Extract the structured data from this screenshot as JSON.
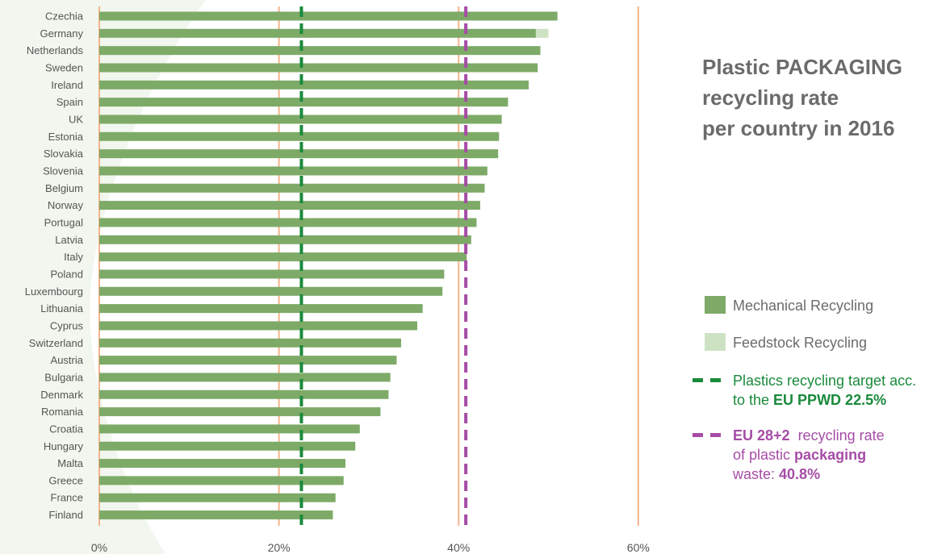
{
  "title": {
    "line1": "Plastic PACKAGING",
    "line2": "recycling rate",
    "line3": "per country in 2016"
  },
  "legend": {
    "mechanical": "Mechanical Recycling",
    "feedstock": "Feedstock Recycling",
    "target_line1": "Plastics recycling target acc.",
    "target_line2_prefix": "to the ",
    "target_line2_bold": "EU PPWD 22.5%",
    "eu_line1_bold": "EU 28+2",
    "eu_line1_rest": "  recycling rate",
    "eu_line2_prefix": "of plastic ",
    "eu_line2_bold": "packaging",
    "eu_line3_prefix": "waste: ",
    "eu_line3_bold": "40.8%"
  },
  "colors": {
    "mechanical": "#7eaa68",
    "feedstock": "#cde2c2",
    "target": "#1a8a3c",
    "eu_average": "#a64ca6",
    "gridline": "#f3b48a",
    "background_swoosh": "#f1f6ee"
  },
  "chart_data": {
    "type": "bar",
    "orientation": "horizontal",
    "stacked": true,
    "categories": [
      "Czechia",
      "Germany",
      "Netherlands",
      "Sweden",
      "Ireland",
      "Spain",
      "UK",
      "Estonia",
      "Slovakia",
      "Slovenia",
      "Belgium",
      "Norway",
      "Portugal",
      "Latvia",
      "Italy",
      "Poland",
      "Luxembourg",
      "Lithuania",
      "Cyprus",
      "Switzerland",
      "Austria",
      "Bulgaria",
      "Denmark",
      "Romania",
      "Croatia",
      "Hungary",
      "Malta",
      "Greece",
      "France",
      "Finland"
    ],
    "series": [
      {
        "name": "Mechanical Recycling",
        "values": [
          51.0,
          48.6,
          49.1,
          48.8,
          47.8,
          45.5,
          44.8,
          44.5,
          44.4,
          43.2,
          42.9,
          42.4,
          42.0,
          41.4,
          40.9,
          38.4,
          38.2,
          36.0,
          35.4,
          33.6,
          33.1,
          32.4,
          32.2,
          31.3,
          29.0,
          28.5,
          27.4,
          27.2,
          26.3,
          26.0
        ]
      },
      {
        "name": "Feedstock Recycling",
        "values": [
          0,
          1.4,
          0,
          0,
          0,
          0,
          0,
          0,
          0,
          0,
          0,
          0,
          0,
          0,
          0,
          0,
          0,
          0,
          0,
          0,
          0,
          0,
          0,
          0,
          0,
          0,
          0,
          0,
          0,
          0
        ]
      }
    ],
    "reference_lines": [
      {
        "name": "Plastics recycling target acc. to the EU PPWD 22.5%",
        "value": 22.5
      },
      {
        "name": "EU 28+2 recycling rate of plastic packaging waste: 40.8%",
        "value": 40.8
      }
    ],
    "xlim": [
      0,
      60
    ],
    "xticks": [
      "0%",
      "20%",
      "40%",
      "60%"
    ],
    "xtick_values": [
      0,
      20,
      40,
      60
    ],
    "grid": true
  }
}
